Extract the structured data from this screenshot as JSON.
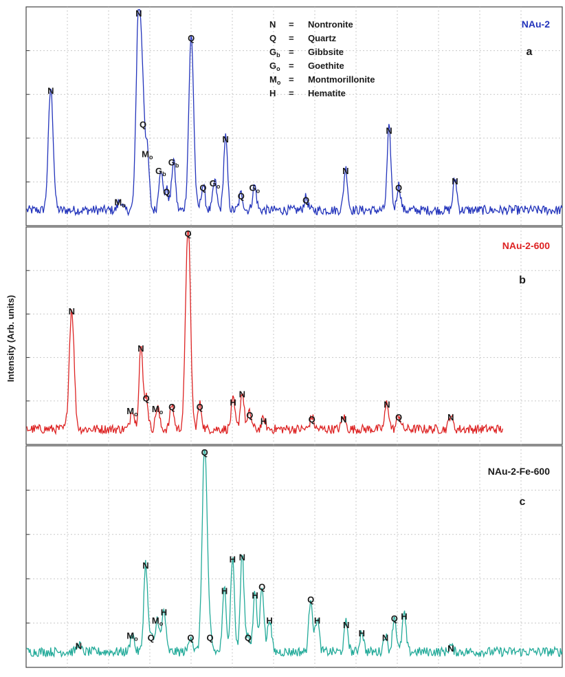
{
  "figure": {
    "ylabel": "Intensity (Arb. units)",
    "legend": [
      {
        "symbol": "N",
        "eq": "=",
        "name": "Nontronite"
      },
      {
        "symbol": "Q",
        "eq": "=",
        "name": "Quartz"
      },
      {
        "symbol": "Gb",
        "eq": "=",
        "name": "Gibbsite"
      },
      {
        "symbol": "Go",
        "eq": "=",
        "name": "Goethite"
      },
      {
        "symbol": "Mo",
        "eq": "=",
        "name": "Montmorillonite"
      },
      {
        "symbol": "H",
        "eq": "=",
        "name": "Hematite"
      }
    ]
  },
  "chart_data": [
    {
      "type": "line",
      "panel": "a",
      "series": [
        {
          "name": "NAu-2",
          "color": "#2233bb"
        }
      ],
      "xlim": [
        0,
        100
      ],
      "ylim": [
        0,
        100
      ],
      "grid": true,
      "peaks": [
        {
          "x": 4.6,
          "y": 58,
          "label": "N"
        },
        {
          "x": 17.5,
          "y": 5,
          "label": "Mo"
        },
        {
          "x": 21.0,
          "y": 100,
          "label": "N"
        },
        {
          "x": 21.8,
          "y": 42,
          "label": "Q"
        },
        {
          "x": 22.6,
          "y": 28,
          "label": "Mo"
        },
        {
          "x": 25.1,
          "y": 20,
          "label": "Gb"
        },
        {
          "x": 26.2,
          "y": 10,
          "label": "Q"
        },
        {
          "x": 27.5,
          "y": 24,
          "label": "Gb"
        },
        {
          "x": 30.8,
          "y": 83,
          "label": "Q"
        },
        {
          "x": 33.0,
          "y": 12,
          "label": "Q"
        },
        {
          "x": 35.2,
          "y": 14,
          "label": "Go"
        },
        {
          "x": 37.2,
          "y": 35,
          "label": "N"
        },
        {
          "x": 40.1,
          "y": 8,
          "label": "Q"
        },
        {
          "x": 42.6,
          "y": 12,
          "label": "Go"
        },
        {
          "x": 52.2,
          "y": 6,
          "label": "Q"
        },
        {
          "x": 59.6,
          "y": 20,
          "label": "N"
        },
        {
          "x": 67.7,
          "y": 39,
          "label": "N"
        },
        {
          "x": 69.5,
          "y": 12,
          "label": "Q"
        },
        {
          "x": 80.0,
          "y": 15,
          "label": "N"
        }
      ]
    },
    {
      "type": "line",
      "panel": "b",
      "series": [
        {
          "name": "NAu-2-600",
          "color": "#dd2222"
        }
      ],
      "xlim": [
        0,
        100
      ],
      "ylim": [
        0,
        100
      ],
      "grid": true,
      "peaks": [
        {
          "x": 8.5,
          "y": 58,
          "label": "N"
        },
        {
          "x": 19.8,
          "y": 10,
          "label": "Mo"
        },
        {
          "x": 21.4,
          "y": 40,
          "label": "N"
        },
        {
          "x": 22.4,
          "y": 16,
          "label": "Q"
        },
        {
          "x": 24.5,
          "y": 11,
          "label": "Mo"
        },
        {
          "x": 27.2,
          "y": 12,
          "label": "Q"
        },
        {
          "x": 30.2,
          "y": 100,
          "label": "Q"
        },
        {
          "x": 32.4,
          "y": 12,
          "label": "Q"
        },
        {
          "x": 38.6,
          "y": 14,
          "label": "H"
        },
        {
          "x": 40.3,
          "y": 18,
          "label": "N"
        },
        {
          "x": 41.7,
          "y": 8,
          "label": "Q"
        },
        {
          "x": 44.3,
          "y": 5,
          "label": "H"
        },
        {
          "x": 53.3,
          "y": 6,
          "label": "Q"
        },
        {
          "x": 59.2,
          "y": 6,
          "label": "N"
        },
        {
          "x": 67.3,
          "y": 13,
          "label": "N"
        },
        {
          "x": 69.5,
          "y": 7,
          "label": "Q"
        },
        {
          "x": 79.2,
          "y": 7,
          "label": "N"
        }
      ]
    },
    {
      "type": "line",
      "panel": "c",
      "series": [
        {
          "name": "NAu-2-Fe-600",
          "color": "#22aa99"
        }
      ],
      "xlim": [
        0,
        100
      ],
      "ylim": [
        0,
        100
      ],
      "grid": true,
      "peaks": [
        {
          "x": 9.8,
          "y": 4,
          "label": "N"
        },
        {
          "x": 19.8,
          "y": 9,
          "label": "Mo"
        },
        {
          "x": 22.3,
          "y": 42,
          "label": "N"
        },
        {
          "x": 23.3,
          "y": 8,
          "label": "Q"
        },
        {
          "x": 24.5,
          "y": 16,
          "label": "Mo"
        },
        {
          "x": 25.7,
          "y": 20,
          "label": "H"
        },
        {
          "x": 30.7,
          "y": 8,
          "label": "Q"
        },
        {
          "x": 33.3,
          "y": 100,
          "label": "Q"
        },
        {
          "x": 34.3,
          "y": 8,
          "label": "Q"
        },
        {
          "x": 37.0,
          "y": 30,
          "label": "H"
        },
        {
          "x": 38.5,
          "y": 45,
          "label": "H"
        },
        {
          "x": 40.3,
          "y": 46,
          "label": "N"
        },
        {
          "x": 41.4,
          "y": 8,
          "label": "Q"
        },
        {
          "x": 42.7,
          "y": 28,
          "label": "H"
        },
        {
          "x": 44.0,
          "y": 32,
          "label": "Q"
        },
        {
          "x": 45.4,
          "y": 16,
          "label": "H"
        },
        {
          "x": 53.1,
          "y": 26,
          "label": "Q"
        },
        {
          "x": 54.3,
          "y": 16,
          "label": "H"
        },
        {
          "x": 59.7,
          "y": 14,
          "label": "N"
        },
        {
          "x": 62.6,
          "y": 10,
          "label": "H"
        },
        {
          "x": 67.0,
          "y": 8,
          "label": "N"
        },
        {
          "x": 68.7,
          "y": 17,
          "label": "Q"
        },
        {
          "x": 70.5,
          "y": 18,
          "label": "H"
        },
        {
          "x": 79.2,
          "y": 3,
          "label": "N"
        }
      ]
    }
  ]
}
